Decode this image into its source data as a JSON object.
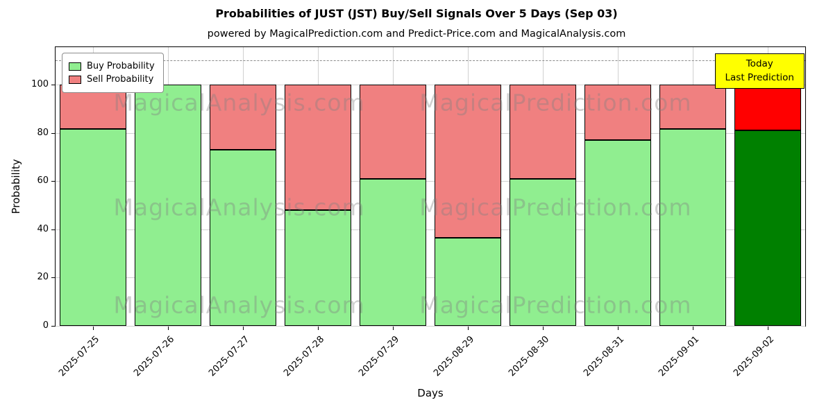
{
  "chart_data": {
    "type": "bar",
    "stacked": true,
    "title": "Probabilities of JUST (JST) Buy/Sell Signals Over 5 Days (Sep 03)",
    "subtitle": "powered by MagicalPrediction.com and Predict-Price.com and MagicalAnalysis.com",
    "xlabel": "Days",
    "ylabel": "Probability",
    "ylim": [
      0,
      115.5
    ],
    "yticks": [
      0,
      20,
      40,
      60,
      80,
      100
    ],
    "grid": true,
    "legend_position": "upper left",
    "categories": [
      "2025-07-25",
      "2025-07-26",
      "2025-07-27",
      "2025-07-28",
      "2025-07-29",
      "2025-08-29",
      "2025-08-30",
      "2025-08-31",
      "2025-09-01",
      "2025-09-02"
    ],
    "series": [
      {
        "name": "Buy Probability",
        "color": "#90EE90",
        "values": [
          81.5,
          100,
          73,
          48,
          61,
          36.5,
          61,
          77,
          81.5,
          81
        ]
      },
      {
        "name": "Sell Probability",
        "color": "#F08080",
        "values": [
          18.5,
          0,
          27,
          52,
          39,
          63.5,
          39,
          23,
          18.5,
          19
        ]
      }
    ],
    "today": {
      "index": 9,
      "buy_color": "#008000",
      "sell_color": "#FF0000"
    },
    "bar_edge_color": "#000000",
    "dashed_line_y": 110,
    "annotation": {
      "line1": "Today",
      "line2": "Last Prediction",
      "bg_color": "#FFFF00",
      "border_color": "#000000"
    },
    "watermarks": {
      "left_text": "MagicalAnalysis.com",
      "right_text": "MagicalPrediction.com"
    }
  }
}
